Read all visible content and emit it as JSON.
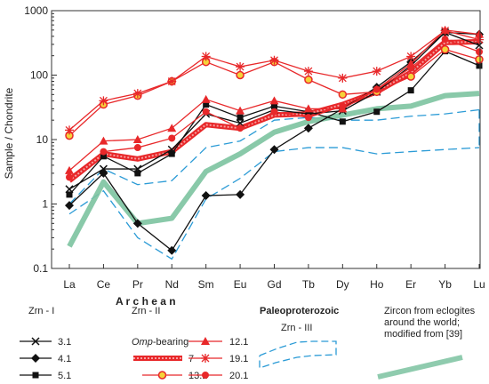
{
  "chart_data": {
    "type": "line",
    "ylabel": "Sample / Chondrite",
    "y_scale": "log",
    "ylim": [
      0.1,
      1000
    ],
    "y_ticks": [
      "0.1",
      "1",
      "10",
      "100",
      "1000"
    ],
    "categories": [
      "La",
      "Ce",
      "Pr",
      "Nd",
      "Sm",
      "Eu",
      "Gd",
      "Tb",
      "Dy",
      "Ho",
      "Er",
      "Yb",
      "Lu"
    ],
    "series": [
      {
        "name": "3.1",
        "group": "Zrn - I",
        "color": "#111111",
        "marker": "x",
        "values": [
          1.7,
          3.5,
          3.5,
          7,
          25,
          18,
          29,
          25,
          28,
          55,
          140,
          460,
          290
        ]
      },
      {
        "name": "4.1",
        "group": "Zrn - I",
        "color": "#111111",
        "marker": "diamond",
        "values": [
          0.95,
          3,
          0.5,
          0.19,
          1.35,
          1.4,
          7,
          15,
          30,
          65,
          160,
          460,
          430
        ]
      },
      {
        "name": "5.1",
        "group": "Zrn - I",
        "color": "#111111",
        "marker": "square",
        "values": [
          1.4,
          5.5,
          3,
          6,
          35,
          22,
          33,
          27,
          19,
          27,
          58,
          235,
          140
        ]
      },
      {
        "name": "7",
        "group": "Zrn - II",
        "color": "#e8282a",
        "marker": "wide-line",
        "values": [
          2.3,
          6,
          5,
          6.5,
          17,
          15,
          24,
          25,
          35,
          55,
          110,
          320,
          330
        ]
      },
      {
        "name": "12.1",
        "group": "Zrn - II",
        "color": "#e8282a",
        "marker": "triangle",
        "values": [
          3.3,
          9.5,
          10,
          15,
          42,
          28,
          40,
          30,
          30,
          60,
          150,
          500,
          430
        ]
      },
      {
        "name": "13.1",
        "group": "Zrn - II",
        "color": "#e8282a",
        "marker": "circle-yellow",
        "values": [
          11.5,
          35,
          48,
          80,
          160,
          100,
          160,
          85,
          50,
          55,
          95,
          250,
          175
        ]
      },
      {
        "name": "19.1",
        "group": "Zrn - II",
        "color": "#e8282a",
        "marker": "star",
        "values": [
          14,
          40,
          52,
          80,
          195,
          135,
          170,
          115,
          90,
          115,
          195,
          490,
          355
        ]
      },
      {
        "name": "20.1",
        "group": "Zrn - II",
        "color": "#e8282a",
        "marker": "circle-red",
        "values": [
          2.6,
          6.5,
          7.5,
          10.5,
          27,
          15,
          27,
          22,
          33,
          60,
          130,
          360,
          230
        ]
      },
      {
        "name": "Zrn - III",
        "group": "Paleoproterozoic",
        "color": "#2b9bd6",
        "marker": "dashed-band",
        "upper": [
          1.0,
          3.5,
          2.0,
          2.3,
          7.5,
          9.5,
          20,
          22,
          20,
          20,
          23,
          25,
          29
        ],
        "lower": [
          0.7,
          1.6,
          0.3,
          0.14,
          1.2,
          2.5,
          6.5,
          7.5,
          7.5,
          6,
          6.5,
          7,
          7.5
        ]
      },
      {
        "name": "Zircon from eclogites around the world; modified from [39]",
        "group": "reference",
        "color": "#7cc3a0",
        "marker": "thick-line",
        "values": [
          0.22,
          2.2,
          0.5,
          0.6,
          3.2,
          6,
          13,
          19,
          24,
          30,
          33,
          48,
          52
        ]
      }
    ]
  },
  "legend": {
    "archean": "A r c h e a n",
    "zrn1": "Zrn - I",
    "zrn2": "Zrn - II",
    "paleo": "Paleoproterozoic",
    "zrn3": "Zrn - III",
    "omp_prefix": "Omp",
    "omp_suffix": "-bearing",
    "ref_line1": "Zircon from eclogites",
    "ref_line2": "around the world;",
    "ref_line3": "modified from [39]",
    "items": {
      "s31": "3.1",
      "s41": "4.1",
      "s51": "5.1",
      "s7": "7",
      "s131": "13.1",
      "s121": "12.1",
      "s191": "19.1",
      "s201": "20.1"
    }
  }
}
